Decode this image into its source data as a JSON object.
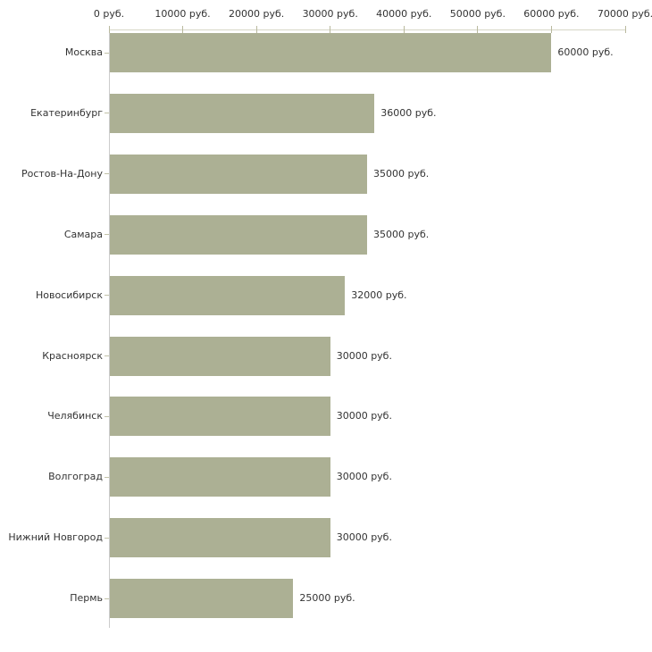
{
  "chart_data": {
    "type": "bar",
    "orientation": "horizontal",
    "categories": [
      "Москва",
      "Екатеринбург",
      "Ростов-На-Дону",
      "Самара",
      "Новосибирск",
      "Красноярск",
      "Челябинск",
      "Волгоград",
      "Нижний Новгород",
      "Пермь"
    ],
    "values": [
      60000,
      36000,
      35000,
      35000,
      32000,
      30000,
      30000,
      30000,
      30000,
      25000
    ],
    "value_labels": [
      "60000 руб.",
      "36000 руб.",
      "35000 руб.",
      "35000 руб.",
      "32000 руб.",
      "30000 руб.",
      "30000 руб.",
      "30000 руб.",
      "30000 руб.",
      "25000 руб."
    ],
    "x_axis": {
      "position": "top",
      "range": [
        0,
        70000
      ],
      "ticks": [
        0,
        10000,
        20000,
        30000,
        40000,
        50000,
        60000,
        70000
      ],
      "tick_labels": [
        "0 руб.",
        "10000 руб.",
        "20000 руб.",
        "30000 руб.",
        "40000 руб.",
        "50000 руб.",
        "60000 руб.",
        "70000 руб."
      ]
    },
    "ylabel": "",
    "xlabel": "",
    "title": "",
    "grid": false,
    "legend": false,
    "colors": {
      "bar": "#acb094",
      "x_axis_line": "#d6d6c6",
      "y_axis_line": "#cccccc",
      "tick": "#b9b99e",
      "text": "#333333",
      "background": "#ffffff"
    }
  }
}
